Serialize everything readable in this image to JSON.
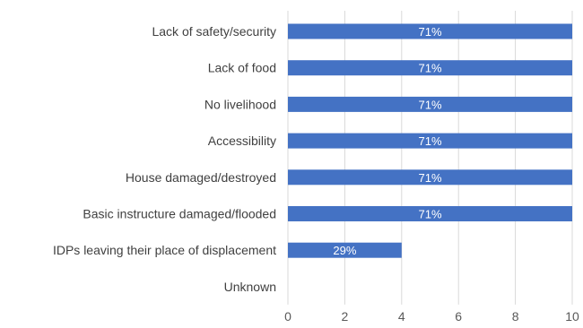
{
  "colors": {
    "bar": "#4472C4",
    "grid": "#d9d9d9",
    "text": "#404040"
  },
  "chart_data": {
    "type": "bar",
    "orientation": "horizontal",
    "categories": [
      "Lack of safety/security",
      "Lack of food",
      "No livelihood",
      "Accessibility",
      "House damaged/destroyed",
      "Basic instructure damaged/flooded",
      "IDPs leaving their place of displacement",
      "Unknown"
    ],
    "values": [
      10,
      10,
      10,
      10,
      10,
      10,
      4,
      0
    ],
    "data_labels": [
      "71%",
      "71%",
      "71%",
      "71%",
      "71%",
      "71%",
      "29%",
      ""
    ],
    "xlim": [
      0,
      10
    ],
    "xticks": [
      "0",
      "2",
      "4",
      "6",
      "8",
      "10"
    ],
    "grid": true,
    "legend": "none",
    "title": "",
    "xlabel": "",
    "ylabel": ""
  }
}
